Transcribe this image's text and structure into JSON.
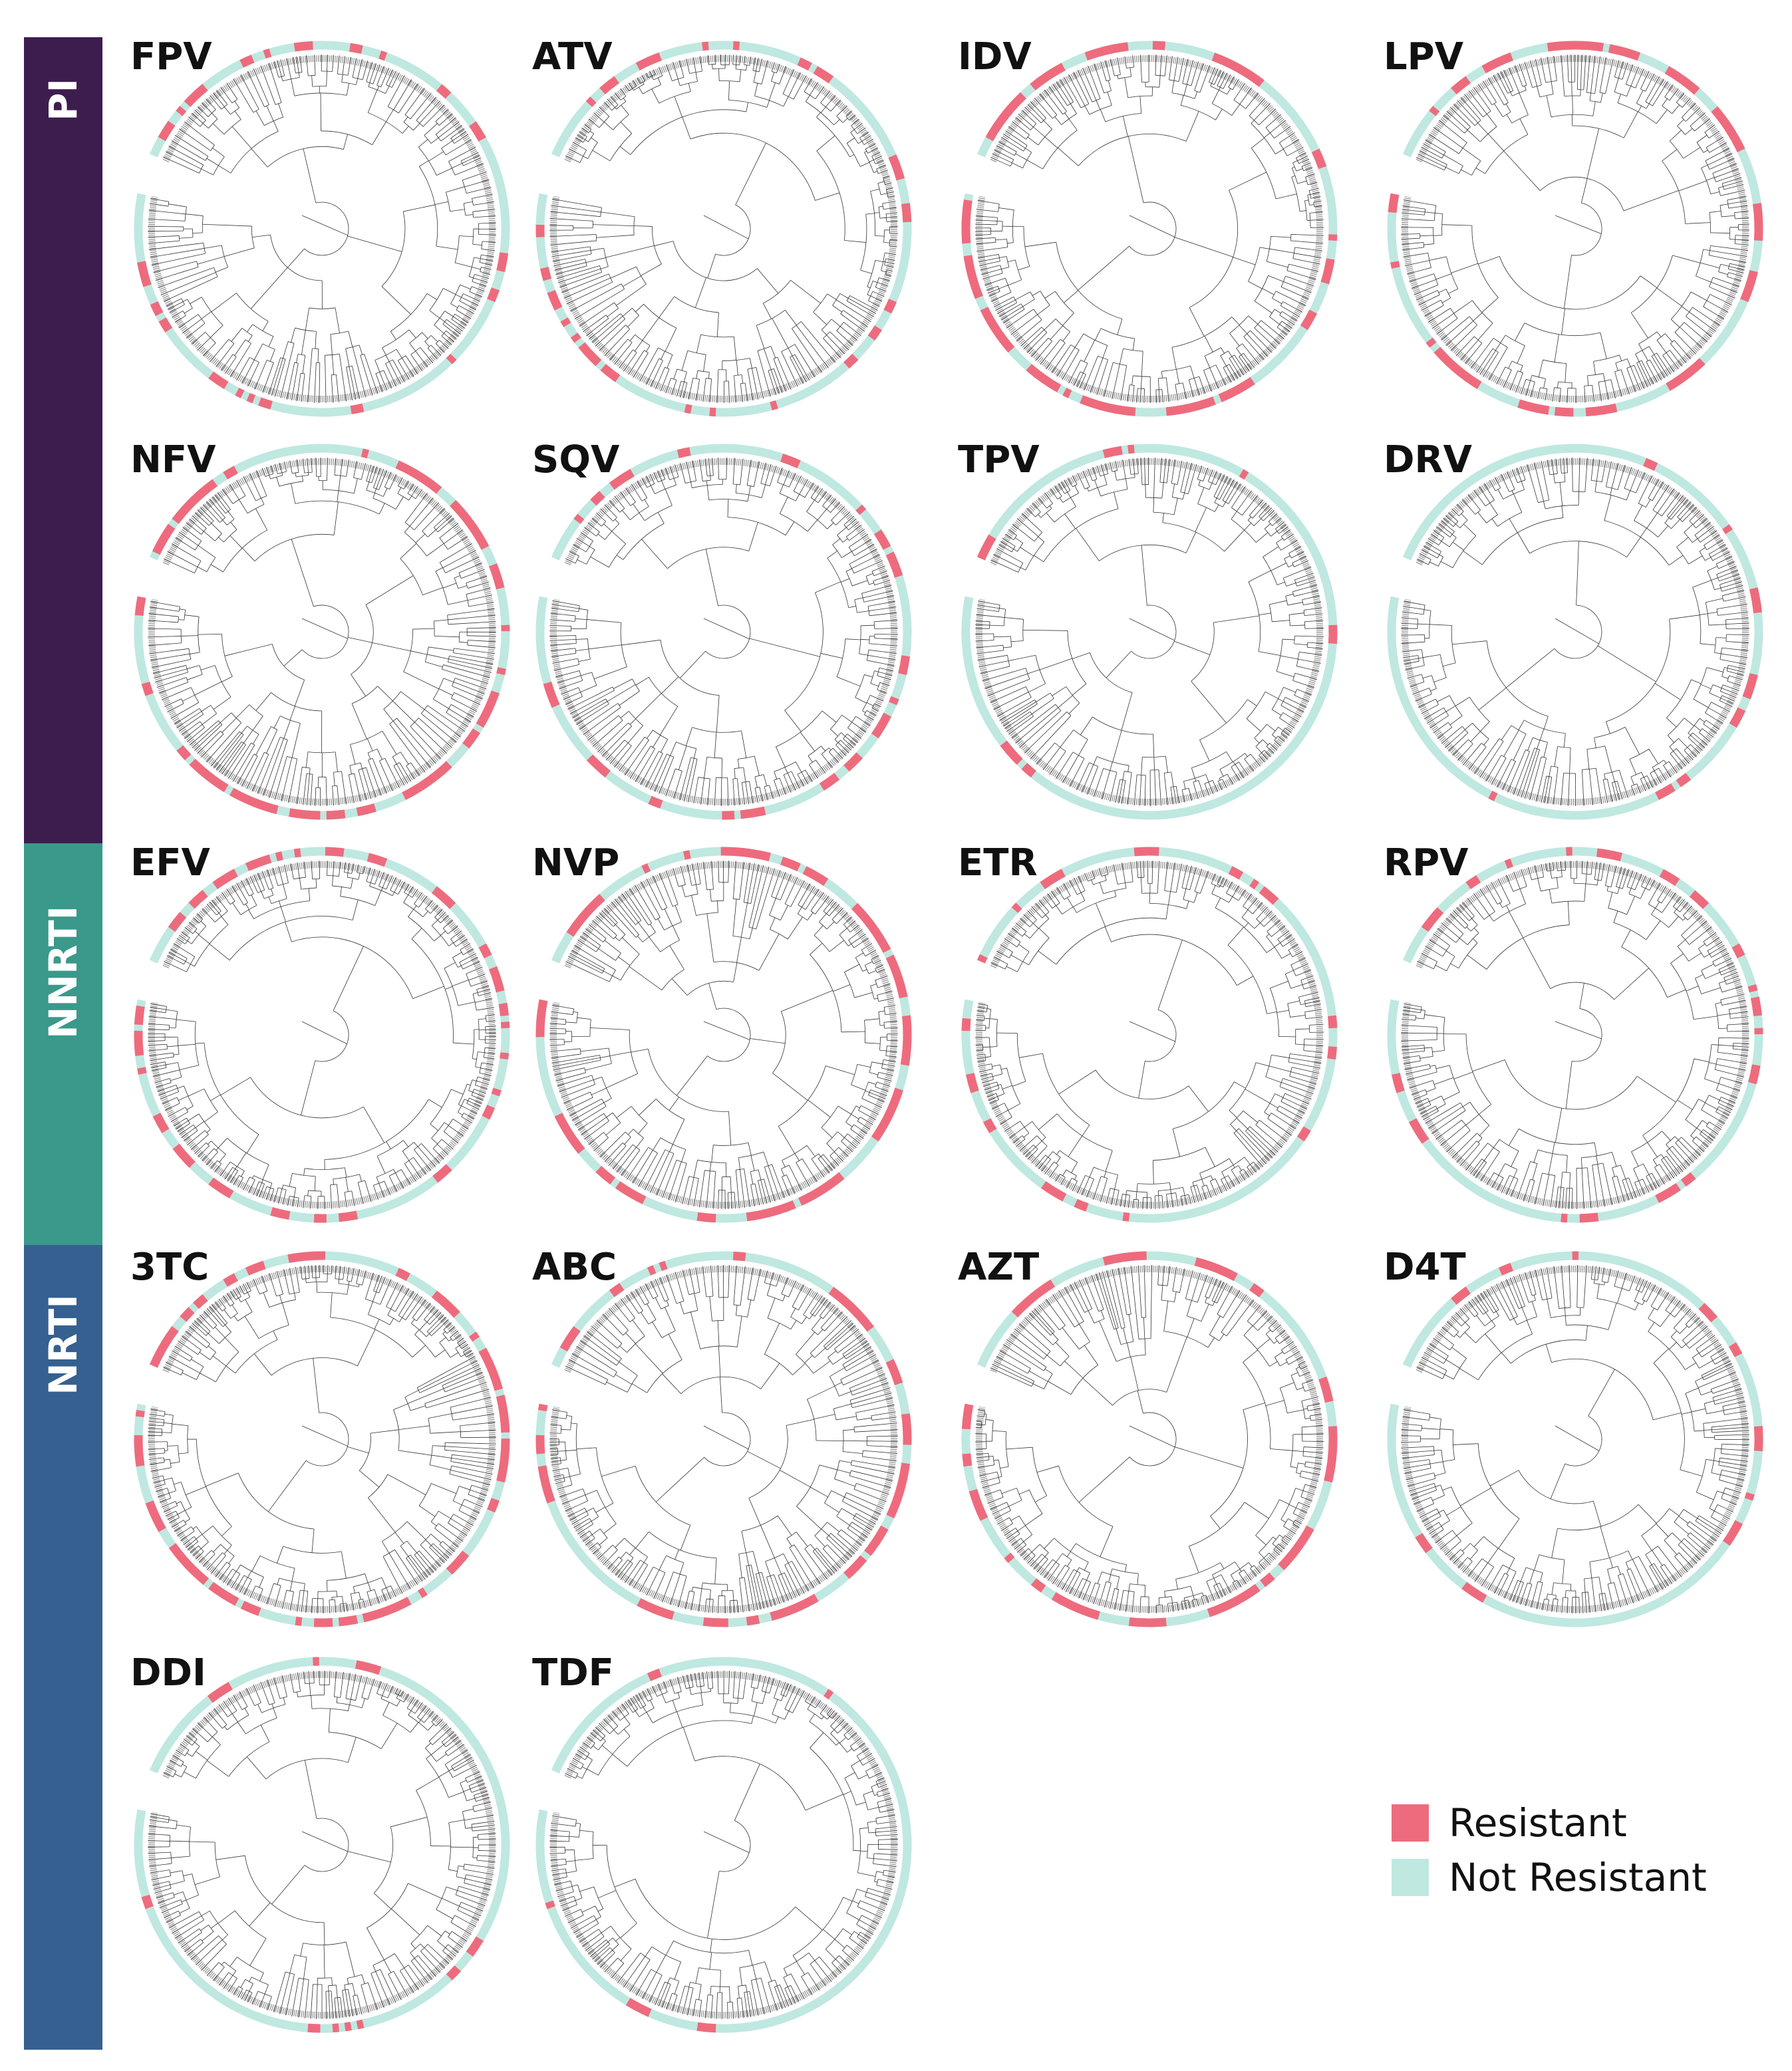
{
  "colors": {
    "resistant": "#ee6b7d",
    "not_resistant": "#bfe8e1",
    "pi_band": "#3d1d4e",
    "nnrti_band": "#3a998a",
    "nrti_band": "#35608f",
    "branch": "#333333"
  },
  "drug_classes": [
    {
      "label": "PI"
    },
    {
      "label": "NNRTI"
    },
    {
      "label": "NRTI"
    }
  ],
  "legend": {
    "resistant_label": "Resistant",
    "not_resistant_label": "Not Resistant"
  },
  "trees": [
    {
      "drug": "FPV",
      "resistant_fraction": 0.3,
      "seed": 11
    },
    {
      "drug": "ATV",
      "resistant_fraction": 0.28,
      "seed": 23
    },
    {
      "drug": "IDV",
      "resistant_fraction": 0.42,
      "seed": 37
    },
    {
      "drug": "LPV",
      "resistant_fraction": 0.38,
      "seed": 41
    },
    {
      "drug": "NFV",
      "resistant_fraction": 0.48,
      "seed": 53
    },
    {
      "drug": "SQV",
      "resistant_fraction": 0.27,
      "seed": 67
    },
    {
      "drug": "TPV",
      "resistant_fraction": 0.14,
      "seed": 71
    },
    {
      "drug": "DRV",
      "resistant_fraction": 0.12,
      "seed": 83
    },
    {
      "drug": "EFV",
      "resistant_fraction": 0.3,
      "seed": 97
    },
    {
      "drug": "NVP",
      "resistant_fraction": 0.38,
      "seed": 101
    },
    {
      "drug": "ETR",
      "resistant_fraction": 0.2,
      "seed": 113
    },
    {
      "drug": "RPV",
      "resistant_fraction": 0.18,
      "seed": 127
    },
    {
      "drug": "3TC",
      "resistant_fraction": 0.45,
      "seed": 131
    },
    {
      "drug": "ABC",
      "resistant_fraction": 0.4,
      "seed": 149
    },
    {
      "drug": "AZT",
      "resistant_fraction": 0.36,
      "seed": 157
    },
    {
      "drug": "D4T",
      "resistant_fraction": 0.14,
      "seed": 163
    },
    {
      "drug": "DDI",
      "resistant_fraction": 0.08,
      "seed": 173
    },
    {
      "drug": "TDF",
      "resistant_fraction": 0.12,
      "seed": 181
    }
  ]
}
